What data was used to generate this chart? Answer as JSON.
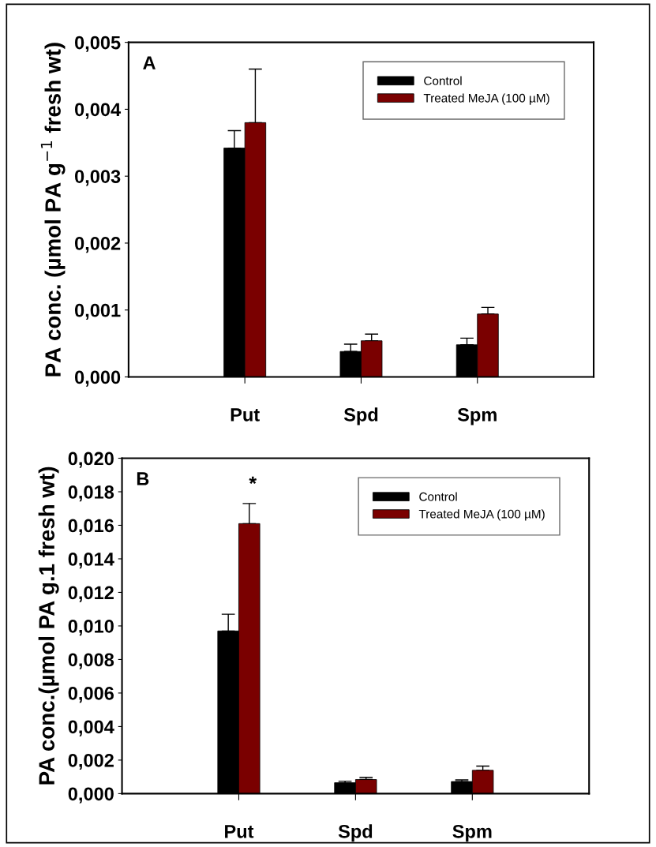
{
  "chart_data": [
    {
      "type": "bar",
      "categories": [
        "Put",
        "Spd",
        "Spm"
      ],
      "ylabel": "PA conc. (µmol PA g$^{−1}$ fresh wt)",
      "annotations": [
        "A"
      ],
      "series": [
        {
          "name": "Control",
          "color": "#000000",
          "values": [
            0.00342,
            0.00038,
            0.00048
          ],
          "errors": [
            [
              0.00342,
              0.00368
            ],
            [
              0.00038,
              0.00049
            ],
            [
              0.00048,
              0.00058
            ]
          ]
        },
        {
          "name": "Treated MeJA (100 µM)",
          "color": "#7a0000",
          "values": [
            0.0038,
            0.00054,
            0.00094
          ],
          "errors": [
            [
              0.0038,
              0.0046
            ],
            [
              0.00054,
              0.00064
            ],
            [
              0.00094,
              0.00104
            ]
          ]
        }
      ],
      "ylim": [
        0,
        0.005
      ],
      "yticks": [
        {
          "value": 0,
          "label": "0,000"
        },
        {
          "value": 0.001,
          "label": "0,001"
        },
        {
          "value": 0.002,
          "label": "0,002"
        },
        {
          "value": 0.003,
          "label": "0,003"
        },
        {
          "value": 0.004,
          "label": "0,004"
        },
        {
          "value": 0.005,
          "label": "0,005"
        }
      ],
      "legend": "top right",
      "grid": false
    },
    {
      "type": "bar",
      "categories": [
        "Put",
        "Spd",
        "Spm"
      ],
      "ylabel": "PA conc.(µmol PA g.1 fresh wt)",
      "annotations": [
        "B",
        "*"
      ],
      "series": [
        {
          "name": "Control",
          "color": "#000000",
          "values": [
            0.0097,
            0.00065,
            0.00072
          ],
          "errors": [
            [
              0.0097,
              0.0107
            ],
            [
              0.00065,
              0.00074
            ],
            [
              0.00072,
              0.00082
            ]
          ]
        },
        {
          "name": "Treated MeJA (100 µM)",
          "color": "#7a0000",
          "values": [
            0.0161,
            0.00084,
            0.00139
          ],
          "errors": [
            [
              0.0161,
              0.0173
            ],
            [
              0.00084,
              0.00097
            ],
            [
              0.00139,
              0.00164
            ]
          ]
        }
      ],
      "ylim": [
        0,
        0.02
      ],
      "yticks": [
        {
          "value": 0,
          "label": "0,000"
        },
        {
          "value": 0.002,
          "label": "0,002"
        },
        {
          "value": 0.004,
          "label": "0,004"
        },
        {
          "value": 0.006,
          "label": "0,006"
        },
        {
          "value": 0.008,
          "label": "0,008"
        },
        {
          "value": 0.01,
          "label": "0,010"
        },
        {
          "value": 0.012,
          "label": "0,012"
        },
        {
          "value": 0.014,
          "label": "0,014"
        },
        {
          "value": 0.016,
          "label": "0,016"
        },
        {
          "value": 0.018,
          "label": "0,018"
        },
        {
          "value": 0.02,
          "label": "0,020"
        }
      ],
      "legend": "top right",
      "grid": false
    }
  ]
}
